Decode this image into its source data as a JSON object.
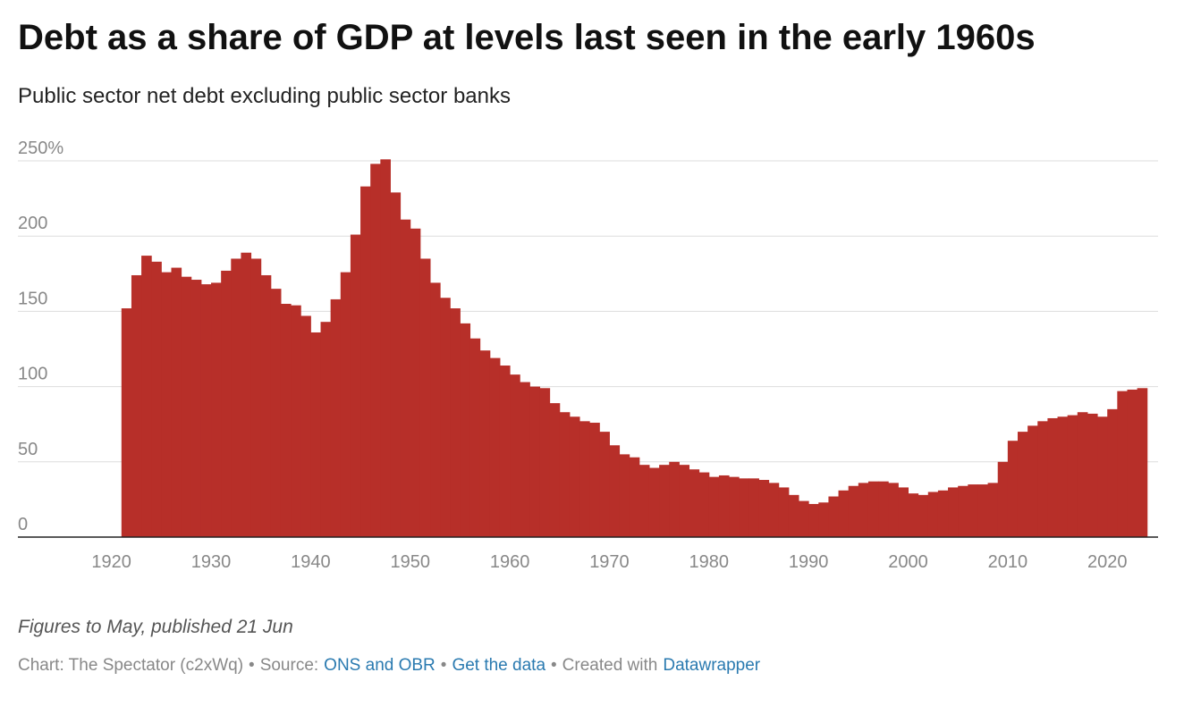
{
  "chart_data": {
    "type": "bar",
    "title": "Debt as a share of GDP at levels last seen in the early 1960s",
    "subtitle": "Public sector net debt excluding public sector banks",
    "color": "#b72f29",
    "x": [
      1921,
      1922,
      1923,
      1924,
      1925,
      1926,
      1927,
      1928,
      1929,
      1930,
      1931,
      1932,
      1933,
      1934,
      1935,
      1936,
      1937,
      1938,
      1939,
      1940,
      1941,
      1942,
      1943,
      1944,
      1945,
      1946,
      1947,
      1948,
      1949,
      1950,
      1951,
      1952,
      1953,
      1954,
      1955,
      1956,
      1957,
      1958,
      1959,
      1960,
      1961,
      1962,
      1963,
      1964,
      1965,
      1966,
      1967,
      1968,
      1969,
      1970,
      1971,
      1972,
      1973,
      1974,
      1975,
      1976,
      1977,
      1978,
      1979,
      1980,
      1981,
      1982,
      1983,
      1984,
      1985,
      1986,
      1987,
      1988,
      1989,
      1990,
      1991,
      1992,
      1993,
      1994,
      1995,
      1996,
      1997,
      1998,
      1999,
      2000,
      2001,
      2002,
      2003,
      2004,
      2005,
      2006,
      2007,
      2008,
      2009,
      2010,
      2011,
      2012,
      2013,
      2014,
      2015,
      2016,
      2017,
      2018,
      2019,
      2020,
      2021,
      2022,
      2023
    ],
    "values": [
      152,
      174,
      187,
      183,
      176,
      179,
      173,
      171,
      168,
      169,
      177,
      185,
      189,
      185,
      174,
      165,
      155,
      154,
      147,
      136,
      143,
      158,
      176,
      201,
      233,
      248,
      251,
      229,
      211,
      205,
      185,
      169,
      159,
      152,
      142,
      132,
      124,
      119,
      114,
      108,
      103,
      100,
      99,
      89,
      83,
      80,
      77,
      76,
      70,
      61,
      55,
      53,
      48,
      46,
      48,
      50,
      48,
      45,
      43,
      40,
      41,
      40,
      39,
      39,
      38,
      36,
      33,
      28,
      24,
      22,
      23,
      27,
      31,
      34,
      36,
      37,
      37,
      36,
      33,
      29,
      28,
      30,
      31,
      33,
      34,
      35,
      35,
      36,
      50,
      64,
      70,
      74,
      77,
      79,
      80,
      81,
      83,
      82,
      80,
      85,
      97,
      98,
      99
    ],
    "xlim": [
      1910.6,
      2025.1
    ],
    "xticks": [
      1920,
      1930,
      1940,
      1950,
      1960,
      1970,
      1980,
      1990,
      2000,
      2010,
      2020
    ],
    "ylim": [
      0,
      250
    ],
    "yticks": [
      0,
      50,
      100,
      150,
      200,
      {
        "value": 250,
        "label": "250%"
      }
    ],
    "grid": true,
    "note": "Figures to May, published 21 Jun",
    "credits": [
      {
        "text": "Chart: The Spectator (c2xWq)",
        "link": false
      },
      {
        "text": "•",
        "link": false
      },
      {
        "text": "Source:",
        "link": false
      },
      {
        "text": "ONS and OBR",
        "link": true
      },
      {
        "text": "•",
        "link": false
      },
      {
        "text": "Get the data",
        "link": true
      },
      {
        "text": "•",
        "link": false
      },
      {
        "text": "Created with",
        "link": false
      },
      {
        "text": "Datawrapper",
        "link": true
      }
    ]
  }
}
